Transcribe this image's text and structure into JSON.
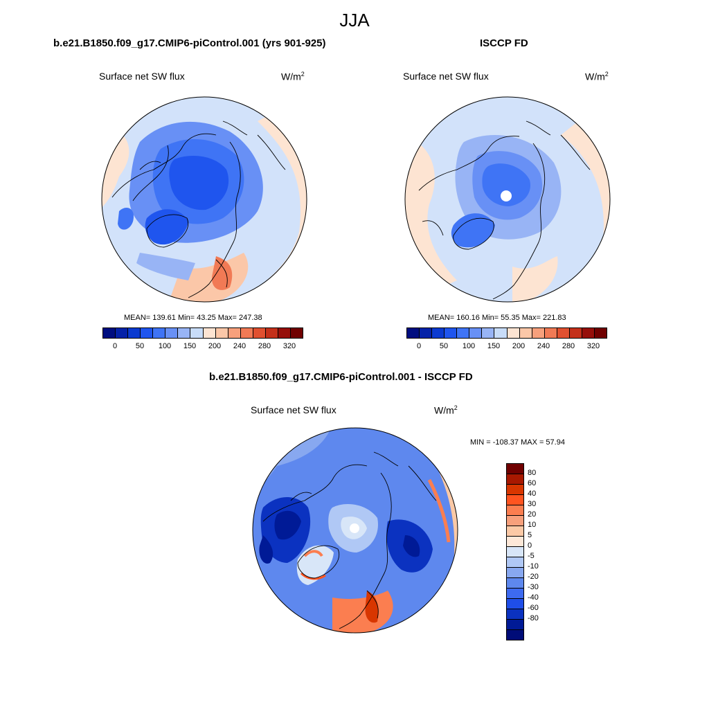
{
  "title": "JJA",
  "panels": {
    "model": {
      "title": "b.e21.B1850.f09_g17.CMIP6-piControl.001 (yrs 901-925)",
      "variable": "Surface net SW flux",
      "units_base": "W/m",
      "units_exp": "2",
      "stats": "MEAN= 139.61  Min=  43.25  Max= 247.38"
    },
    "obs": {
      "title": "ISCCP FD",
      "variable": "Surface net SW flux",
      "units_base": "W/m",
      "units_exp": "2",
      "stats": "MEAN= 160.16  Min=  55.35  Max= 221.83"
    },
    "diff": {
      "title": "b.e21.B1850.f09_g17.CMIP6-piControl.001 - ISCCP FD",
      "variable": "Surface net SW flux",
      "units_base": "W/m",
      "units_exp": "2",
      "stats": "MIN = -108.37 MAX =  57.94"
    }
  },
  "colorbar_main": {
    "colors": [
      "#000e80",
      "#0522a8",
      "#0b3ad0",
      "#1f55ee",
      "#3f74f5",
      "#6890f5",
      "#98b4f5",
      "#c8dcf8",
      "#fde4d2",
      "#fbc7a8",
      "#f7a07c",
      "#f17a55",
      "#e05030",
      "#c4301a",
      "#960f0a",
      "#700000"
    ],
    "tick_labels": [
      "0",
      "50",
      "100",
      "150",
      "200",
      "240",
      "280",
      "320"
    ]
  },
  "colorbar_diff": {
    "colors": [
      "#700000",
      "#a81800",
      "#d83600",
      "#ff5420",
      "#fb7e50",
      "#f7a07c",
      "#fbc9a6",
      "#fde8d8",
      "#d8e6f8",
      "#b0c8f5",
      "#88a8f0",
      "#5e88ee",
      "#3d6af0",
      "#1f4ee8",
      "#0b32c0",
      "#001a96",
      "#000c78"
    ],
    "tick_labels": [
      "80",
      "60",
      "40",
      "30",
      "20",
      "10",
      "5",
      "0",
      "-5",
      "-10",
      "-20",
      "-30",
      "-40",
      "-60",
      "-80"
    ]
  }
}
